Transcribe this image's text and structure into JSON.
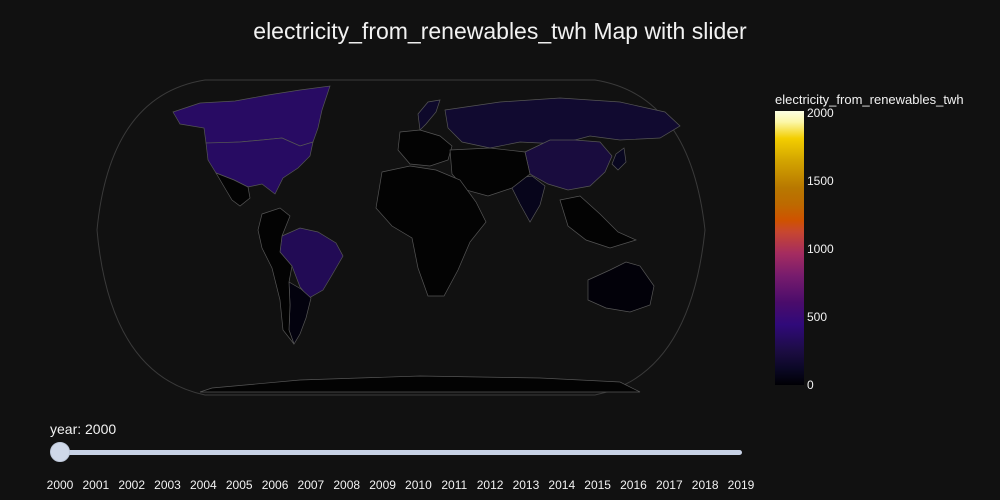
{
  "chart_data": {
    "type": "choropleth",
    "title": "electricity_from_renewables_twh Map with slider",
    "colorbar": {
      "title": "electricity_from_renewables_twh",
      "range": [
        0,
        2000
      ],
      "ticks": [
        "0",
        "500",
        "1000",
        "1500",
        "2000"
      ],
      "colorscale": "plasma-like (black → purple → orange → yellow → white)"
    },
    "regions": [
      {
        "name": "Canada",
        "value": 360
      },
      {
        "name": "United States",
        "value": 355
      },
      {
        "name": "Brazil",
        "value": 310
      },
      {
        "name": "China",
        "value": 225
      },
      {
        "name": "Russia",
        "value": 165
      },
      {
        "name": "Norway",
        "value": 140
      },
      {
        "name": "India",
        "value": 80
      },
      {
        "name": "Japan",
        "value": 100
      },
      {
        "name": "Argentina",
        "value": 35
      },
      {
        "name": "Australia",
        "value": 17
      }
    ]
  },
  "slider": {
    "label_prefix": "year: ",
    "current": "2000",
    "years": [
      "2000",
      "2001",
      "2002",
      "2003",
      "2004",
      "2005",
      "2006",
      "2007",
      "2008",
      "2009",
      "2010",
      "2011",
      "2012",
      "2013",
      "2014",
      "2015",
      "2016",
      "2017",
      "2018",
      "2019"
    ]
  }
}
